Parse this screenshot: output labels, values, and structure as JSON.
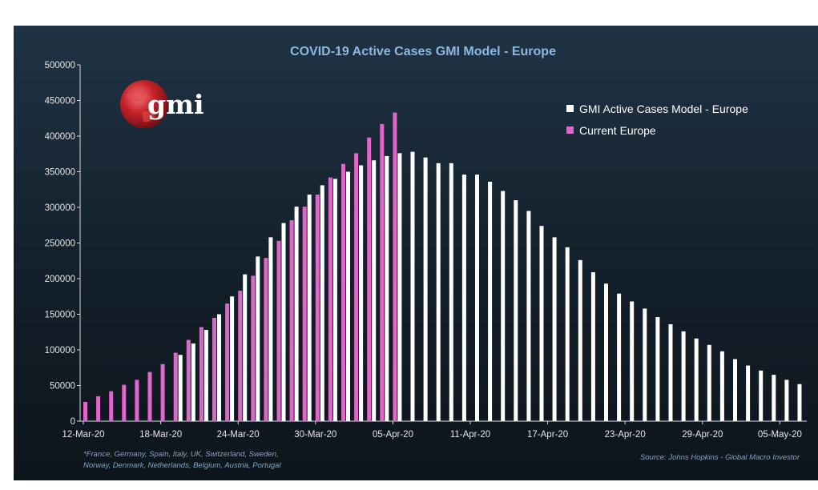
{
  "chart_data": {
    "type": "bar",
    "title": "COVID-19 Active Cases GMI Model - Europe",
    "ylim": [
      0,
      500000
    ],
    "y_ticks": [
      0,
      50000,
      100000,
      150000,
      200000,
      250000,
      300000,
      350000,
      400000,
      450000,
      500000
    ],
    "y_tick_labels": [
      "0",
      "50000",
      "100000",
      "150000",
      "200000",
      "250000",
      "300000",
      "350000",
      "400000",
      "450000",
      "500000"
    ],
    "x_tick_labels": [
      "12-Mar-20",
      "18-Mar-20",
      "24-Mar-20",
      "30-Mar-20",
      "05-Apr-20",
      "11-Apr-20",
      "17-Apr-20",
      "23-Apr-20",
      "29-Apr-20",
      "05-May-20"
    ],
    "x_tick_step_days": 6,
    "categories": [
      "12-Mar-20",
      "13-Mar-20",
      "14-Mar-20",
      "15-Mar-20",
      "16-Mar-20",
      "17-Mar-20",
      "18-Mar-20",
      "19-Mar-20",
      "20-Mar-20",
      "21-Mar-20",
      "22-Mar-20",
      "23-Mar-20",
      "24-Mar-20",
      "25-Mar-20",
      "26-Mar-20",
      "27-Mar-20",
      "28-Mar-20",
      "29-Mar-20",
      "30-Mar-20",
      "31-Mar-20",
      "01-Apr-20",
      "02-Apr-20",
      "03-Apr-20",
      "04-Apr-20",
      "05-Apr-20",
      "06-Apr-20",
      "07-Apr-20",
      "08-Apr-20",
      "09-Apr-20",
      "10-Apr-20",
      "11-Apr-20",
      "12-Apr-20",
      "13-Apr-20",
      "14-Apr-20",
      "15-Apr-20",
      "16-Apr-20",
      "17-Apr-20",
      "18-Apr-20",
      "19-Apr-20",
      "20-Apr-20",
      "21-Apr-20",
      "22-Apr-20",
      "23-Apr-20",
      "24-Apr-20",
      "25-Apr-20",
      "26-Apr-20",
      "27-Apr-20",
      "28-Apr-20",
      "29-Apr-20",
      "30-Apr-20",
      "01-May-20",
      "02-May-20",
      "03-May-20",
      "04-May-20",
      "05-May-20",
      "06-May-20"
    ],
    "series": [
      {
        "name": "GMI Active Cases Model - Europe",
        "color": "#ffffff",
        "values": [
          null,
          null,
          null,
          null,
          null,
          null,
          null,
          93000,
          109000,
          128000,
          150000,
          175000,
          206000,
          231000,
          258000,
          278000,
          301000,
          318000,
          331000,
          340000,
          350000,
          359000,
          366000,
          372000,
          376000,
          378000,
          370000,
          362000,
          362000,
          346000,
          346000,
          336000,
          323000,
          310000,
          295000,
          274000,
          258000,
          244000,
          226000,
          209000,
          193000,
          179000,
          168000,
          158000,
          146000,
          136000,
          126000,
          116000,
          107000,
          98000,
          87000,
          78000,
          71000,
          65000,
          58000,
          52000
        ]
      },
      {
        "name": "Current Europe",
        "color": "#e066c9",
        "values": [
          27000,
          35000,
          42000,
          51000,
          58000,
          69000,
          80000,
          96000,
          114000,
          132000,
          145000,
          165000,
          183000,
          204000,
          229000,
          253000,
          282000,
          301000,
          318000,
          342000,
          361000,
          376000,
          398000,
          417000,
          433000,
          null,
          null,
          null,
          null,
          null,
          null,
          null,
          null,
          null,
          null,
          null,
          null,
          null,
          null,
          null,
          null,
          null,
          null,
          null,
          null,
          null,
          null,
          null,
          null,
          null,
          null,
          null,
          null,
          null,
          null,
          null
        ]
      }
    ],
    "legend_placement": "top-right",
    "grid": false
  },
  "footnote_line1": "*France, Germany, Spain, Italy, UK, Switzerland, Sweden,",
  "footnote_line2": "Norway, Denmark, Netherlands, Belgium, Austria, Portugal",
  "source": "Source: Johns Hopkins - Global Macro Investor",
  "logo_text": "gmi",
  "colors": {
    "title": "#8fb7de",
    "model_bar": "#ffffff",
    "current_bar": "#e066c9",
    "logo_globe": "#c8242b"
  }
}
